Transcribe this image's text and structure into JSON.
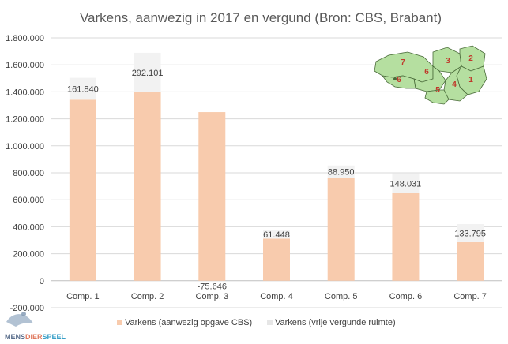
{
  "chart_data": {
    "type": "bar",
    "stacked": true,
    "title": "Varkens, aanwezig in 2017 en vergund (Bron: CBS, Brabant)",
    "xlabel": "",
    "ylabel": "",
    "categories": [
      "Comp. 1",
      "Comp. 2",
      "Comp. 3",
      "Comp. 4",
      "Comp. 5",
      "Comp. 6",
      "Comp. 7"
    ],
    "ylim": [
      -200000,
      1800000
    ],
    "ytick_step": 200000,
    "ytick_labels": [
      "-200.000",
      "0",
      "200.000",
      "400.000",
      "600.000",
      "800.000",
      "1.000.000",
      "1.200.000",
      "1.400.000",
      "1.600.000",
      "1.800.000"
    ],
    "grid": true,
    "legend_position": "bottom",
    "series": [
      {
        "name": "Varkens (aanwezig opgave CBS)",
        "color": "#f8cbad",
        "values": [
          1342000,
          1397000,
          1250000,
          312000,
          765000,
          648000,
          286000
        ]
      },
      {
        "name": "Varkens (vrije vergunde ruimte)",
        "color": "#f2f2f2",
        "values": [
          161840,
          292101,
          -75646,
          61448,
          88950,
          148031,
          133795
        ],
        "labels": [
          "161.840",
          "292.101",
          "-75.646",
          "61.448",
          "88.950",
          "148.031",
          "133.795"
        ]
      }
    ]
  },
  "inset_map": {
    "region_labels": [
      "7",
      "3",
      "2",
      "6",
      "1",
      "4",
      "5",
      "6"
    ],
    "fill": "#b5dfa0",
    "label_color": "#c0392b"
  },
  "watermark": {
    "parts": [
      "MENS",
      "DIER",
      "SPEEL"
    ],
    "colors": [
      "#5a6e8c",
      "#e07a5f",
      "#3aa0c8"
    ]
  }
}
